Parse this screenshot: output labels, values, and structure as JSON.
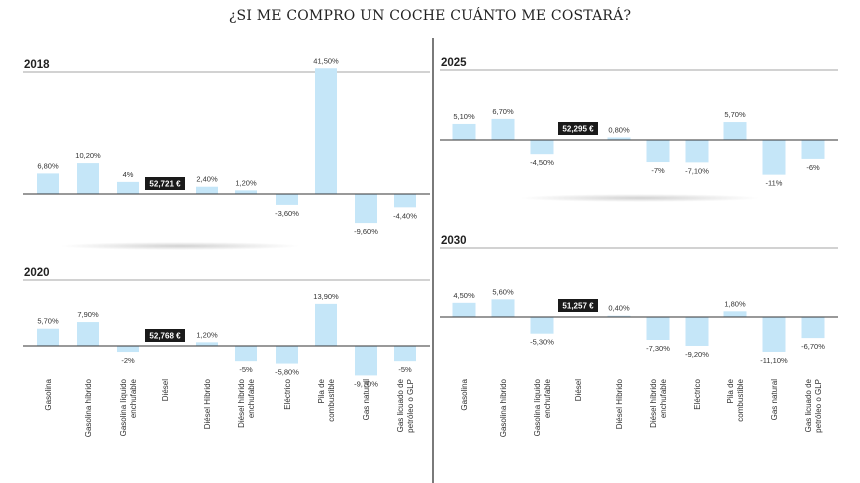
{
  "title": "¿SI ME COMPRO UN COCHE CUÁNTO ME COSTARÁ?",
  "chart_data": {
    "type": "bar",
    "categories": [
      [
        "Gasolina"
      ],
      [
        "Gasolina híbrido"
      ],
      [
        "Gasolina líquido",
        "enchufable"
      ],
      [
        "Diésel"
      ],
      [
        "Diésel Híbrido"
      ],
      [
        "Diésel híbrido",
        "enchufable"
      ],
      [
        "Eléctrico"
      ],
      [
        "Pila de",
        "combustible"
      ],
      [
        "Gas natural"
      ],
      [
        "Gas licuado de",
        "petróleo o GLP"
      ]
    ],
    "reference_category_index": 3,
    "colors": {
      "bar": "#c5e6f8",
      "baseline": "#333333",
      "label_box": "#1a1a1a",
      "label_box_text": "#ffffff",
      "divider": "#333333"
    },
    "panels": [
      {
        "year": "2018",
        "reference_price": "52,721 €",
        "values": [
          6.8,
          10.2,
          4,
          null,
          2.4,
          1.2,
          -3.6,
          41.5,
          -9.6,
          -4.4
        ],
        "labels": [
          "6,80%",
          "10,20%",
          "4%",
          "",
          "2,40%",
          "1,20%",
          "-3,60%",
          "41,50%",
          "-9,60%",
          "-4,40%"
        ]
      },
      {
        "year": "2020",
        "reference_price": "52,768 €",
        "values": [
          5.7,
          7.9,
          -2,
          null,
          1.2,
          -5,
          -5.8,
          13.9,
          -9.7,
          -5
        ],
        "labels": [
          "5,70%",
          "7,90%",
          "-2%",
          "",
          "1,20%",
          "-5%",
          "-5,80%",
          "13,90%",
          "-9,70%",
          "-5%"
        ]
      },
      {
        "year": "2025",
        "reference_price": "52,295 €",
        "values": [
          5.1,
          6.7,
          -4.5,
          null,
          0.8,
          -7,
          -7.1,
          5.7,
          -11,
          -6
        ],
        "labels": [
          "5,10%",
          "6,70%",
          "-4,50%",
          "",
          "0,80%",
          "-7%",
          "-7,10%",
          "5,70%",
          "-11%",
          "-6%"
        ]
      },
      {
        "year": "2030",
        "reference_price": "51,257 €",
        "values": [
          4.5,
          5.6,
          -5.3,
          null,
          0.4,
          -7.3,
          -9.2,
          1.8,
          -11.1,
          -6.7
        ],
        "labels": [
          "4,50%",
          "5,60%",
          "-5,30%",
          "",
          "0,40%",
          "-7,30%",
          "-9,20%",
          "1,80%",
          "-11,10%",
          "-6,70%"
        ]
      }
    ]
  }
}
